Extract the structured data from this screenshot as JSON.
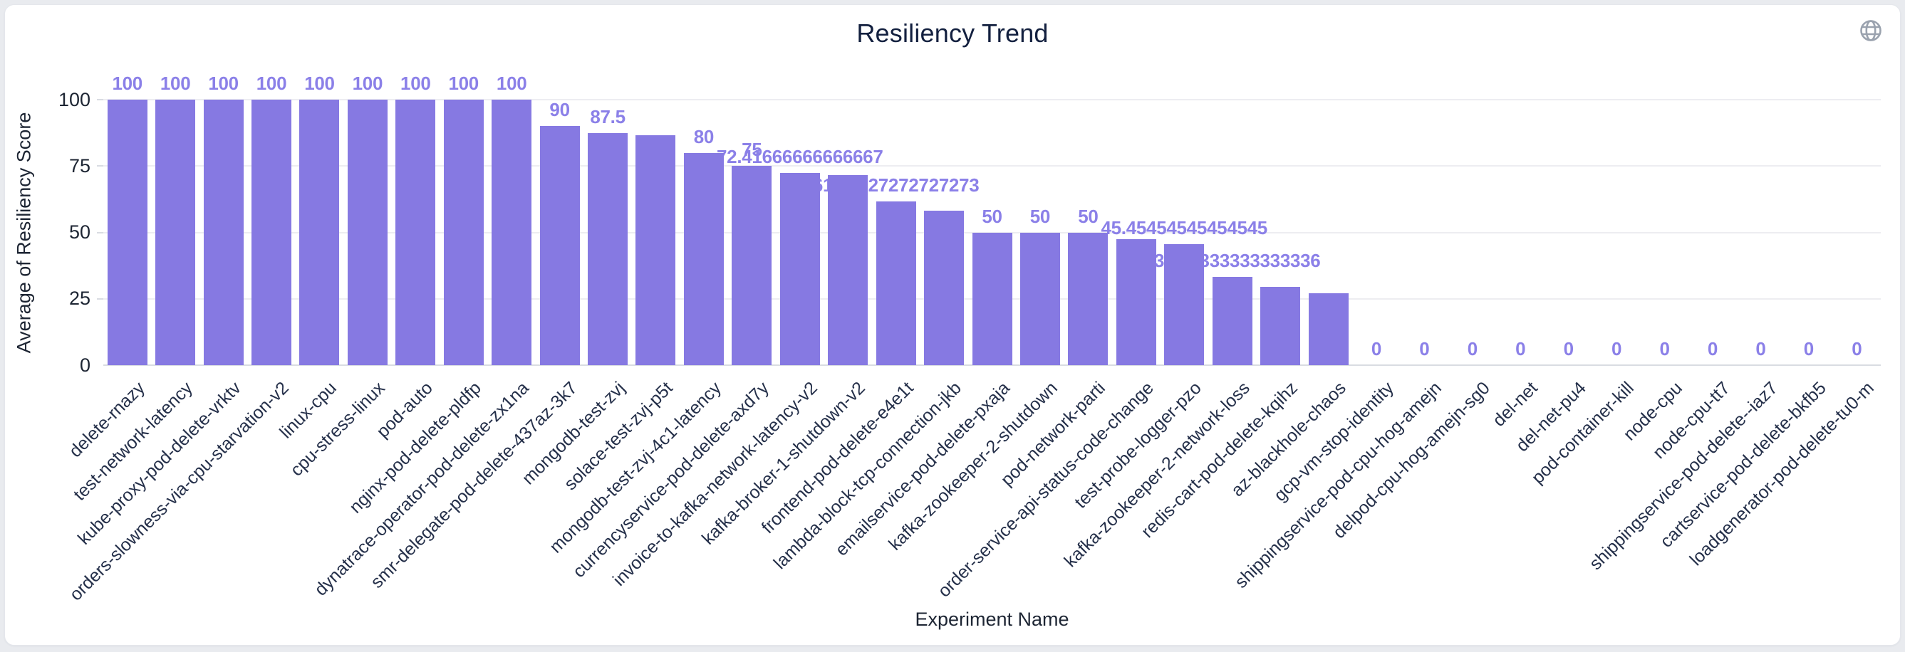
{
  "page": {
    "background": "#e9ebef",
    "card_background": "#ffffff"
  },
  "header": {
    "title": "Resiliency Trend"
  },
  "icons": {
    "globe_color": "#9aa2ae"
  },
  "chart_data": {
    "type": "bar",
    "title": "Resiliency Trend",
    "xlabel": "Experiment Name",
    "ylabel": "Average of Resiliency Score",
    "ylim": [
      0,
      100
    ],
    "y_ticks": [
      0,
      25,
      50,
      75,
      100
    ],
    "grid": true,
    "legend": "none",
    "bar_color": "#8679e2",
    "value_label_color": "#8b80e8",
    "categories": [
      "delete-rnazy",
      "test-network-latency",
      "kube-proxy-pod-delete-vrktv",
      "orders-slowness-via-cpu-starvation-v2",
      "linux-cpu",
      "cpu-stress-linux",
      "pod-auto",
      "nginx-pod-delete-pldfp",
      "dynatrace-operator-pod-delete-zx1na",
      "smr-delegate-pod-delete-437az-3k7",
      "mongodb-test-zvj",
      "solace-test-zvj-p5t",
      "mongodb-test-zvj-4c1-latency",
      "currencyservice-pod-delete-axd7y",
      "invoice-to-kafka-network-latency-v2",
      "kafka-broker-1-shutdown-v2",
      "frontend-pod-delete-e4e1t",
      "lambda-block-tcp-connection-jkb",
      "emailservice-pod-delete-pxaja",
      "kafka-zookeeper-2-shutdown",
      "pod-network-parti",
      "order-service-api-status-code-change",
      "test-probe-logger-pzo",
      "kafka-zookeeper-2-network-loss",
      "redis-cart-pod-delete-kqihz",
      "az-blackhole-chaos",
      "gcp-vm-stop-identity",
      "shippingservice-pod-cpu-hog-amejn",
      "delpod-cpu-hog-amejn-sg0",
      "del-net",
      "del-net-pu4",
      "pod-container-kill",
      "node-cpu",
      "node-cpu-tt7",
      "shippingservice-pod-delete--iaz7",
      "cartservice-pod-delete-bkfb5",
      "loadgenerator-pod-delete-tu0-m"
    ],
    "values": [
      100,
      100,
      100,
      100,
      100,
      100,
      100,
      100,
      100,
      90,
      87.5,
      86.5,
      80,
      75,
      72.41666666666667,
      71.7,
      61.72727272727273,
      58.2,
      50,
      50,
      50,
      47.5,
      45.45454545454545,
      33.333333333333336,
      29.5,
      27,
      0,
      0,
      0,
      0,
      0,
      0,
      0,
      0,
      0,
      0,
      0
    ],
    "bar_labels": [
      "100",
      "100",
      "100",
      "100",
      "100",
      "100",
      "100",
      "100",
      "100",
      "90",
      "87.5",
      "",
      "80",
      "75",
      "72.41666666666667",
      "",
      "61.72727272727273",
      "",
      "50",
      "50",
      "50",
      "",
      "45.45454545454545",
      "33.333333333333336",
      "",
      "",
      "0",
      "0",
      "0",
      "0",
      "0",
      "0",
      "0",
      "0",
      "0",
      "0",
      "0"
    ]
  }
}
